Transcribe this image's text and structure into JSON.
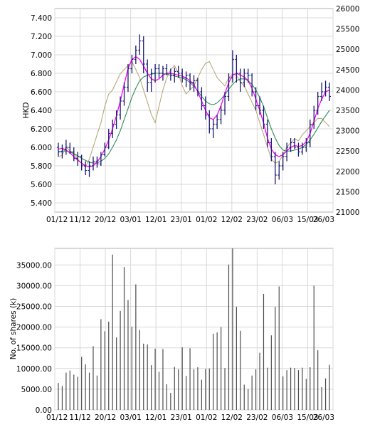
{
  "chart_data": [
    {
      "type": "ohlc",
      "ylabel": "HKD",
      "ylim": [
        5.3,
        7.5
      ],
      "y_ticks": [
        "5.400",
        "5.600",
        "5.800",
        "6.000",
        "6.200",
        "6.400",
        "6.600",
        "6.800",
        "7.000",
        "7.200",
        "7.400"
      ],
      "y2lim": [
        21000,
        26000
      ],
      "y2_ticks": [
        "21000",
        "21500",
        "22000",
        "22500",
        "23000",
        "23500",
        "24000",
        "24500",
        "25000",
        "25500",
        "26000"
      ],
      "x_ticks": [
        "01/12",
        "11/12",
        "20/12",
        "03/01",
        "12/01",
        "23/01",
        "01/02",
        "12/02",
        "23/02",
        "06/03",
        "15/03",
        "26/03"
      ],
      "grid": true,
      "ohlc": [
        [
          6.0,
          6.05,
          5.9,
          5.95
        ],
        [
          5.95,
          6.03,
          5.88,
          5.98
        ],
        [
          5.98,
          6.08,
          5.92,
          6.0
        ],
        [
          6.0,
          6.05,
          5.93,
          5.95
        ],
        [
          5.95,
          6.0,
          5.85,
          5.88
        ],
        [
          5.88,
          5.95,
          5.8,
          5.9
        ],
        [
          5.9,
          5.92,
          5.75,
          5.8
        ],
        [
          5.8,
          5.85,
          5.7,
          5.75
        ],
        [
          5.75,
          5.85,
          5.68,
          5.8
        ],
        [
          5.8,
          5.9,
          5.75,
          5.85
        ],
        [
          5.85,
          5.9,
          5.78,
          5.82
        ],
        [
          5.82,
          5.95,
          5.8,
          5.92
        ],
        [
          5.92,
          6.05,
          5.9,
          6.0
        ],
        [
          6.0,
          6.2,
          5.98,
          6.15
        ],
        [
          6.15,
          6.3,
          6.1,
          6.25
        ],
        [
          6.25,
          6.4,
          6.2,
          6.35
        ],
        [
          6.35,
          6.55,
          6.3,
          6.5
        ],
        [
          6.5,
          6.7,
          6.45,
          6.65
        ],
        [
          6.65,
          6.9,
          6.6,
          6.85
        ],
        [
          6.85,
          7.0,
          6.8,
          6.95
        ],
        [
          6.95,
          7.1,
          6.9,
          7.05
        ],
        [
          7.05,
          7.22,
          7.0,
          7.15
        ],
        [
          7.15,
          7.2,
          6.8,
          6.9
        ],
        [
          6.9,
          6.95,
          6.6,
          6.7
        ],
        [
          6.7,
          6.85,
          6.6,
          6.8
        ],
        [
          6.8,
          6.9,
          6.7,
          6.85
        ],
        [
          6.85,
          6.9,
          6.75,
          6.8
        ],
        [
          6.8,
          6.88,
          6.72,
          6.85
        ],
        [
          6.85,
          6.9,
          6.78,
          6.8
        ],
        [
          6.8,
          6.85,
          6.72,
          6.78
        ],
        [
          6.78,
          6.86,
          6.7,
          6.82
        ],
        [
          6.82,
          6.88,
          6.75,
          6.8
        ],
        [
          6.8,
          6.85,
          6.7,
          6.75
        ],
        [
          6.75,
          6.82,
          6.65,
          6.78
        ],
        [
          6.78,
          6.8,
          6.62,
          6.7
        ],
        [
          6.7,
          6.78,
          6.6,
          6.72
        ],
        [
          6.72,
          6.75,
          6.55,
          6.6
        ],
        [
          6.6,
          6.65,
          6.4,
          6.45
        ],
        [
          6.45,
          6.55,
          6.3,
          6.35
        ],
        [
          6.35,
          6.4,
          6.15,
          6.2
        ],
        [
          6.2,
          6.3,
          6.1,
          6.25
        ],
        [
          6.25,
          6.35,
          6.2,
          6.3
        ],
        [
          6.3,
          6.45,
          6.25,
          6.4
        ],
        [
          6.4,
          6.6,
          6.35,
          6.55
        ],
        [
          6.55,
          6.8,
          6.5,
          6.75
        ],
        [
          6.75,
          7.05,
          6.7,
          6.95
        ],
        [
          6.95,
          7.0,
          6.7,
          6.8
        ],
        [
          6.8,
          6.85,
          6.6,
          6.7
        ],
        [
          6.7,
          6.85,
          6.65,
          6.8
        ],
        [
          6.8,
          6.85,
          6.7,
          6.78
        ],
        [
          6.78,
          6.8,
          6.55,
          6.6
        ],
        [
          6.6,
          6.65,
          6.4,
          6.45
        ],
        [
          6.45,
          6.55,
          6.35,
          6.4
        ],
        [
          6.4,
          6.45,
          6.2,
          6.25
        ],
        [
          6.25,
          6.3,
          6.0,
          6.05
        ],
        [
          6.05,
          6.1,
          5.85,
          5.9
        ],
        [
          5.9,
          5.95,
          5.6,
          5.7
        ],
        [
          5.7,
          5.85,
          5.65,
          5.8
        ],
        [
          5.8,
          5.95,
          5.75,
          5.9
        ],
        [
          5.9,
          6.05,
          5.85,
          6.0
        ],
        [
          6.0,
          6.1,
          5.95,
          6.05
        ],
        [
          6.05,
          6.1,
          5.98,
          6.0
        ],
        [
          6.0,
          6.05,
          5.9,
          5.95
        ],
        [
          5.95,
          6.05,
          5.92,
          6.0
        ],
        [
          6.0,
          6.1,
          5.95,
          6.05
        ],
        [
          6.05,
          6.3,
          6.0,
          6.25
        ],
        [
          6.25,
          6.45,
          6.2,
          6.4
        ],
        [
          6.4,
          6.6,
          6.35,
          6.55
        ],
        [
          6.55,
          6.7,
          6.5,
          6.6
        ],
        [
          6.6,
          6.72,
          6.55,
          6.65
        ],
        [
          6.65,
          6.7,
          6.5,
          6.55
        ]
      ],
      "sma_fast": [
        5.98,
        5.99,
        5.97,
        5.94,
        5.9,
        5.86,
        5.83,
        5.8,
        5.79,
        5.8,
        5.84,
        5.9,
        5.98,
        6.08,
        6.2,
        6.34,
        6.5,
        6.68,
        6.85,
        6.95,
        6.98,
        6.95,
        6.88,
        6.8,
        6.74,
        6.72,
        6.74,
        6.78,
        6.8,
        6.8,
        6.79,
        6.78,
        6.77,
        6.75,
        6.72,
        6.68,
        6.6,
        6.5,
        6.4,
        6.32,
        6.3,
        6.35,
        6.45,
        6.58,
        6.7,
        6.78,
        6.8,
        6.78,
        6.76,
        6.72,
        6.64,
        6.52,
        6.4,
        6.26,
        6.1,
        5.98,
        5.92,
        5.9,
        5.92,
        5.96,
        6.0,
        6.02,
        6.01,
        6.02,
        6.06,
        6.15,
        6.28,
        6.42,
        6.52,
        6.6,
        6.62
      ],
      "sma_slow": [
        5.95,
        5.96,
        5.96,
        5.95,
        5.93,
        5.91,
        5.88,
        5.86,
        5.84,
        5.83,
        5.83,
        5.85,
        5.88,
        5.93,
        6.0,
        6.08,
        6.18,
        6.3,
        6.42,
        6.54,
        6.64,
        6.72,
        6.76,
        6.78,
        6.79,
        6.8,
        6.8,
        6.8,
        6.79,
        6.78,
        6.77,
        6.76,
        6.75,
        6.73,
        6.7,
        6.66,
        6.61,
        6.55,
        6.5,
        6.47,
        6.46,
        6.48,
        6.52,
        6.57,
        6.63,
        6.68,
        6.72,
        6.74,
        6.74,
        6.72,
        6.68,
        6.62,
        6.54,
        6.44,
        6.32,
        6.2,
        6.1,
        6.02,
        5.97,
        5.96,
        5.96,
        5.97,
        5.98,
        6.0,
        6.03,
        6.08,
        6.14,
        6.21,
        6.28,
        6.34,
        6.4
      ],
      "index": [
        22350,
        22400,
        22600,
        22500,
        22450,
        22300,
        22200,
        22100,
        22300,
        22600,
        22900,
        23200,
        23600,
        23900,
        24000,
        24200,
        24400,
        24500,
        24600,
        24700,
        24500,
        24300,
        24000,
        23700,
        23400,
        23200,
        23600,
        24000,
        24300,
        24500,
        24600,
        24400,
        24100,
        23900,
        24000,
        24100,
        24300,
        24500,
        24650,
        24700,
        24500,
        24300,
        24200,
        24100,
        24300,
        24400,
        24350,
        24200,
        24100,
        23900,
        23700,
        23500,
        23200,
        22900,
        22600,
        22300,
        22200,
        22250,
        22400,
        22600,
        22700,
        22800,
        22750,
        22900,
        23000,
        23100,
        23200,
        23300,
        23300,
        23200,
        23100
      ],
      "line_colors": {
        "price": "#191970",
        "fast": "#ff00ff",
        "slow": "#2e8b57",
        "index": "#b8a878"
      }
    },
    {
      "type": "bar",
      "ylabel": "No. of shares (k)",
      "ylim": [
        0,
        39000
      ],
      "y_ticks": [
        "0.00",
        "5000.00",
        "10000.00",
        "15000.00",
        "20000.00",
        "25000.00",
        "30000.00",
        "35000.00"
      ],
      "x_ticks": [
        "01/12",
        "11/12",
        "20/12",
        "03/01",
        "12/01",
        "23/01",
        "01/02",
        "12/02",
        "23/02",
        "06/03",
        "15/03",
        "26/03"
      ],
      "grid": true,
      "values": [
        6500,
        5800,
        9000,
        9500,
        8500,
        8000,
        12800,
        11000,
        9000,
        15400,
        8300,
        21900,
        19000,
        21300,
        37500,
        17500,
        23900,
        34500,
        26500,
        20100,
        30300,
        19300,
        16000,
        15800,
        10800,
        14800,
        9200,
        14700,
        6200,
        4100,
        10400,
        9800,
        15100,
        8200,
        14900,
        9800,
        10300,
        7300,
        9900,
        10000,
        18400,
        18700,
        20000,
        10100,
        35100,
        39000,
        24900,
        19100,
        6100,
        5000,
        8300,
        9800,
        13800,
        28000,
        10200,
        18000,
        24900,
        29800,
        8100,
        9600,
        10200,
        10100,
        9600,
        10200,
        7500,
        10300,
        30000,
        14400,
        5500,
        7600,
        10900
      ],
      "bar_color": "#4d4d4d"
    }
  ]
}
